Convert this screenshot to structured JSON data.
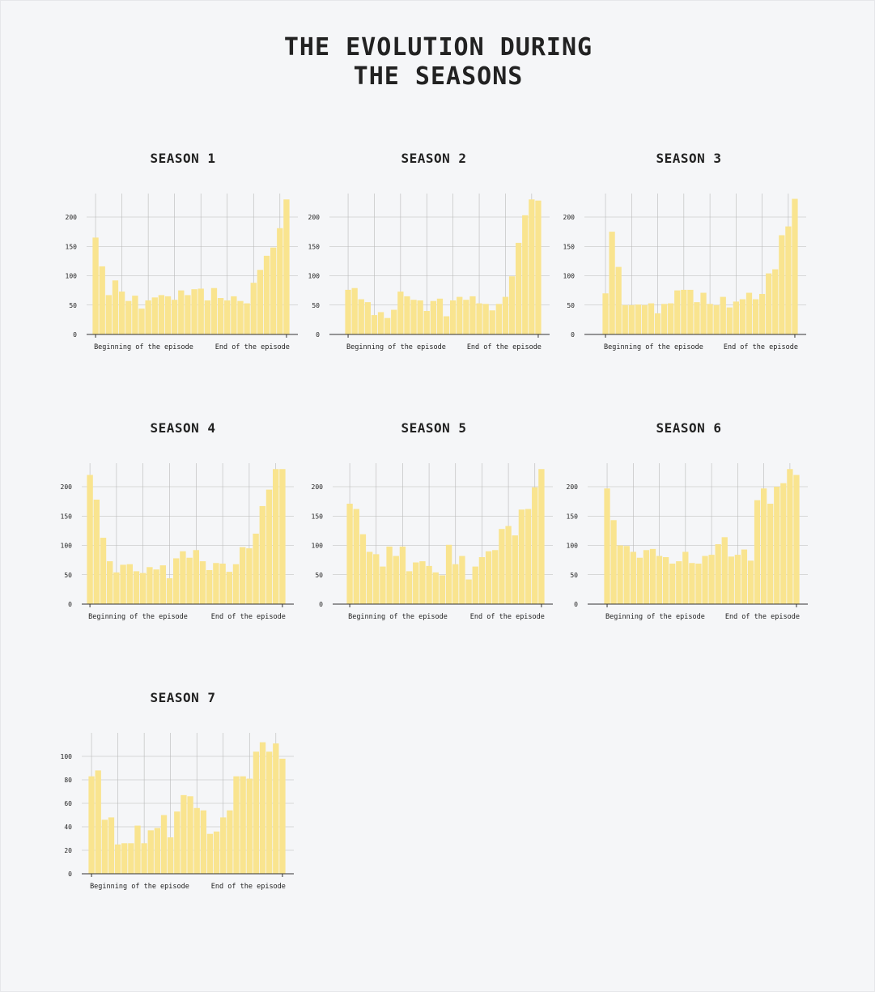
{
  "title": "THE EVOLUTION DURING\nTHE SEASONS",
  "colors": {
    "bar": "#f9e48f",
    "grid": "#b9b9b9",
    "axis": "#333333",
    "background": "#f5f6f8"
  },
  "chart_data": [
    {
      "type": "bar",
      "title": "SEASON 1",
      "xlabel_left": "Beginning of the episode",
      "xlabel_right": "End of the episode",
      "ylim": [
        0,
        240
      ],
      "yticks": [
        0,
        50,
        100,
        150,
        200
      ],
      "grid": true,
      "values": [
        165,
        116,
        67,
        92,
        73,
        57,
        66,
        44,
        58,
        63,
        67,
        65,
        59,
        75,
        67,
        77,
        78,
        58,
        79,
        62,
        58,
        65,
        57,
        53,
        88,
        110,
        134,
        148,
        181,
        230
      ]
    },
    {
      "type": "bar",
      "title": "SEASON 2",
      "xlabel_left": "Beginning of the episode",
      "xlabel_right": "End of the episode",
      "ylim": [
        0,
        240
      ],
      "yticks": [
        0,
        50,
        100,
        150,
        200
      ],
      "grid": true,
      "values": [
        76,
        79,
        60,
        55,
        33,
        38,
        28,
        42,
        73,
        65,
        59,
        58,
        40,
        57,
        61,
        31,
        58,
        64,
        59,
        65,
        53,
        52,
        41,
        52,
        64,
        99,
        156,
        203,
        230,
        228
      ]
    },
    {
      "type": "bar",
      "title": "SEASON 3",
      "xlabel_left": "Beginning of the episode",
      "xlabel_right": "End of the episode",
      "ylim": [
        0,
        240
      ],
      "yticks": [
        0,
        50,
        100,
        150,
        200
      ],
      "grid": true,
      "values": [
        70,
        175,
        115,
        50,
        50,
        51,
        50,
        53,
        36,
        52,
        53,
        75,
        76,
        76,
        55,
        71,
        52,
        50,
        64,
        46,
        56,
        60,
        71,
        60,
        69,
        104,
        111,
        169,
        184,
        231
      ]
    },
    {
      "type": "bar",
      "title": "SEASON 4",
      "xlabel_left": "Beginning of the episode",
      "xlabel_right": "End of the episode",
      "ylim": [
        0,
        240
      ],
      "yticks": [
        0,
        50,
        100,
        150,
        200
      ],
      "grid": true,
      "values": [
        220,
        178,
        113,
        73,
        54,
        67,
        68,
        56,
        53,
        63,
        59,
        66,
        44,
        78,
        90,
        79,
        92,
        73,
        58,
        70,
        69,
        55,
        68,
        97,
        95,
        120,
        167,
        195,
        230,
        230
      ]
    },
    {
      "type": "bar",
      "title": "SEASON 5",
      "xlabel_left": "Beginning of the episode",
      "xlabel_right": "End of the episode",
      "ylim": [
        0,
        240
      ],
      "yticks": [
        0,
        50,
        100,
        150,
        200
      ],
      "grid": true,
      "values": [
        171,
        162,
        119,
        89,
        85,
        64,
        98,
        82,
        98,
        56,
        71,
        73,
        65,
        54,
        49,
        101,
        68,
        82,
        42,
        64,
        80,
        90,
        92,
        128,
        133,
        117,
        161,
        162,
        199,
        230
      ]
    },
    {
      "type": "bar",
      "title": "SEASON 6",
      "xlabel_left": "Beginning of the episode",
      "xlabel_right": "End of the episode",
      "ylim": [
        0,
        240
      ],
      "yticks": [
        0,
        50,
        100,
        150,
        200
      ],
      "grid": true,
      "values": [
        197,
        143,
        100,
        99,
        89,
        79,
        92,
        94,
        82,
        80,
        69,
        73,
        89,
        70,
        69,
        82,
        84,
        102,
        114,
        81,
        84,
        93,
        74,
        177,
        197,
        171,
        200,
        206,
        230,
        220
      ]
    },
    {
      "type": "bar",
      "title": "SEASON 7",
      "xlabel_left": "Beginning of the episode",
      "xlabel_right": "End of the episode",
      "ylim": [
        0,
        120
      ],
      "yticks": [
        0,
        20,
        40,
        60,
        80,
        100
      ],
      "grid": true,
      "values": [
        83,
        88,
        46,
        48,
        25,
        26,
        26,
        41,
        26,
        37,
        39,
        50,
        31,
        53,
        67,
        66,
        56,
        54,
        34,
        36,
        48,
        54,
        83,
        83,
        81,
        104,
        112,
        104,
        111,
        98
      ]
    }
  ]
}
